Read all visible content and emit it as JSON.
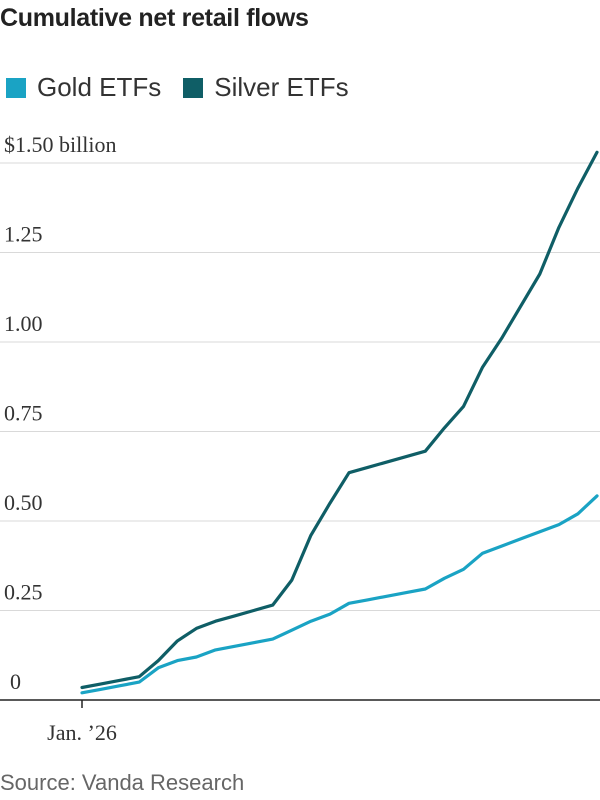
{
  "title": "Cumulative net retail flows",
  "source": "Source: Vanda Research",
  "chart_data": {
    "type": "line",
    "title": "Cumulative net retail flows",
    "xlabel": "",
    "ylabel": "",
    "x_tick_label": "Jan. ’26",
    "y_ticks": [
      {
        "value": 0,
        "label": "0"
      },
      {
        "value": 0.25,
        "label": "0.25"
      },
      {
        "value": 0.5,
        "label": "0.50"
      },
      {
        "value": 0.75,
        "label": "0.75"
      },
      {
        "value": 1.0,
        "label": "1.00"
      },
      {
        "value": 1.25,
        "label": "1.25"
      },
      {
        "value": 1.5,
        "label": "$1.50 billion"
      }
    ],
    "ylim": [
      0,
      1.5
    ],
    "xlim": [
      0,
      27
    ],
    "grid": true,
    "legend_position": "top-left",
    "x": [
      0,
      1,
      2,
      3,
      4,
      5,
      6,
      7,
      8,
      9,
      10,
      11,
      12,
      13,
      14,
      15,
      16,
      17,
      18,
      19,
      20,
      21,
      22,
      23,
      24,
      25,
      26,
      27
    ],
    "series": [
      {
        "name": "Gold ETFs",
        "color": "#1aa3c4",
        "values": [
          0.02,
          0.03,
          0.04,
          0.05,
          0.09,
          0.11,
          0.12,
          0.14,
          0.15,
          0.16,
          0.17,
          0.195,
          0.22,
          0.24,
          0.27,
          0.28,
          0.29,
          0.3,
          0.31,
          0.34,
          0.365,
          0.41,
          0.43,
          0.45,
          0.47,
          0.49,
          0.52,
          0.57
        ]
      },
      {
        "name": "Silver ETFs",
        "color": "#0f5e66",
        "values": [
          0.035,
          0.045,
          0.055,
          0.065,
          0.11,
          0.165,
          0.2,
          0.22,
          0.235,
          0.25,
          0.265,
          0.335,
          0.46,
          0.55,
          0.635,
          0.65,
          0.665,
          0.68,
          0.695,
          0.76,
          0.82,
          0.93,
          1.01,
          1.1,
          1.19,
          1.32,
          1.43,
          1.53
        ]
      }
    ]
  }
}
